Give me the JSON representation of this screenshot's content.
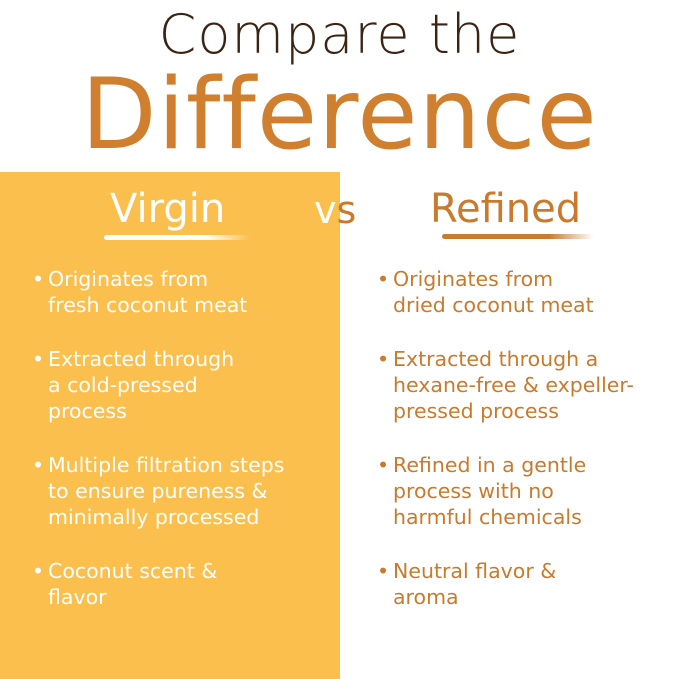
{
  "title": {
    "line1": "Compare the",
    "line2": "Difference"
  },
  "vs": {
    "v": "v",
    "s": "s"
  },
  "virgin": {
    "heading": "Virgin",
    "items": [
      [
        "Originates from",
        "fresh coconut meat"
      ],
      [
        "Extracted through",
        "a cold-pressed",
        "process"
      ],
      [
        "Multiple filtration steps",
        "to ensure pureness &",
        "minimally processed"
      ],
      [
        "Coconut scent &",
        "flavor"
      ]
    ]
  },
  "refined": {
    "heading": "Refined",
    "items": [
      [
        "Originates from",
        "dried coconut meat"
      ],
      [
        "Extracted through a",
        "hexane-free & expeller-",
        "pressed process"
      ],
      [
        "Refined in a gentle",
        "process with no",
        "harmful chemicals"
      ],
      [
        "Neutral flavor &",
        "aroma"
      ]
    ]
  },
  "bullet": "•",
  "colors": {
    "panel": "#fbbf4d",
    "accent": "#c97a2c",
    "title_dark": "#3b2414"
  }
}
